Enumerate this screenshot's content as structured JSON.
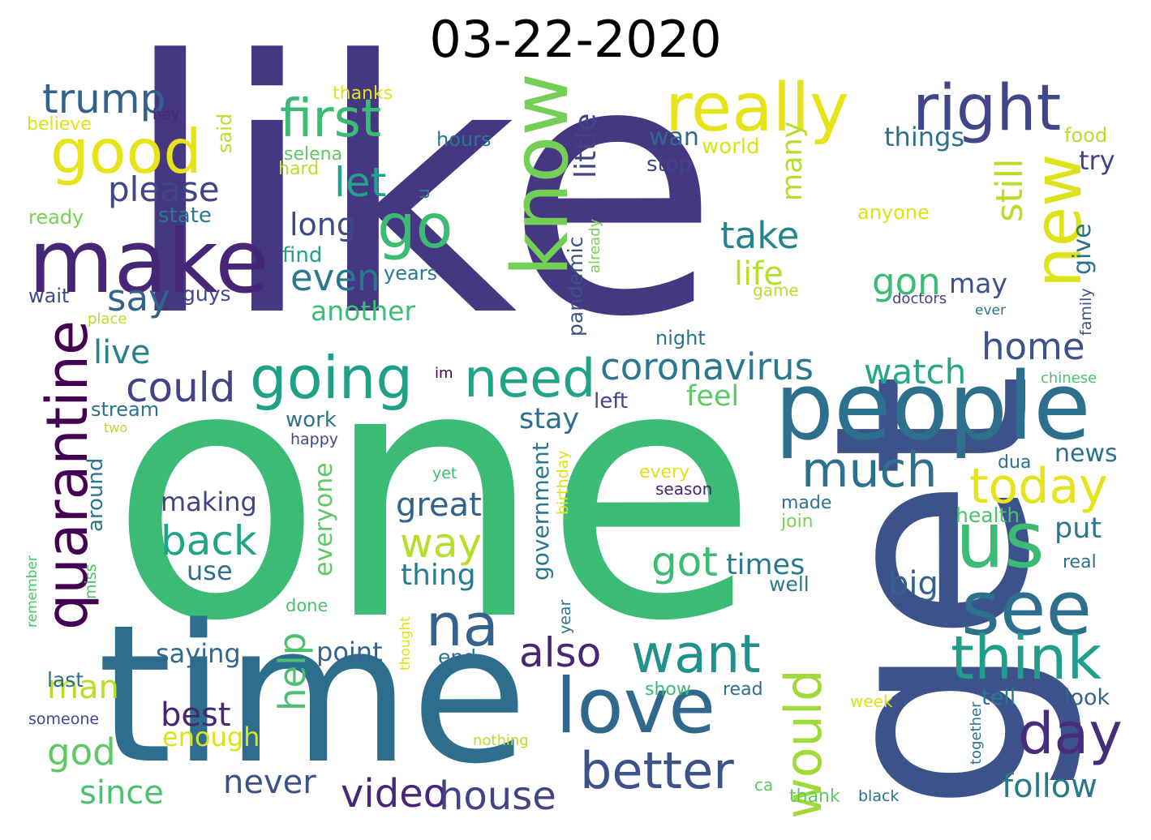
{
  "title": "03-22-2020",
  "colors": {
    "dark_purple": "#453781",
    "purple": "#482677",
    "blue": "#33638d",
    "steel": "#2d708e",
    "teal": "#238a8d",
    "green_teal": "#20a386",
    "green": "#3cbb75",
    "light_green": "#73d055",
    "lime": "#b8de29",
    "yellow": "#e6e419"
  },
  "words": [
    {
      "text": "like",
      "color": "#453781"
    },
    {
      "text": "one",
      "color": "#3cbb75"
    },
    {
      "text": "get",
      "color": "#3b528b"
    },
    {
      "text": "time",
      "color": "#2d6d8e"
    },
    {
      "text": "people",
      "color": "#2d708e"
    },
    {
      "text": "make",
      "color": "#482677"
    },
    {
      "text": "know",
      "color": "#73d055"
    },
    {
      "text": "really",
      "color": "#e6e419"
    },
    {
      "text": "right",
      "color": "#404688"
    },
    {
      "text": "first",
      "color": "#3cbb75"
    },
    {
      "text": "good",
      "color": "#e6e419"
    },
    {
      "text": "new",
      "color": "#dde318"
    },
    {
      "text": "go",
      "color": "#3cbb75"
    },
    {
      "text": "quarantine",
      "color": "#440154"
    },
    {
      "text": "going",
      "color": "#1fa187"
    },
    {
      "text": "need",
      "color": "#20a386"
    },
    {
      "text": "us",
      "color": "#3cbb75"
    },
    {
      "text": "see",
      "color": "#2d708e"
    },
    {
      "text": "love",
      "color": "#31688e"
    },
    {
      "text": "think",
      "color": "#1f9e89"
    },
    {
      "text": "na",
      "color": "#33638d"
    },
    {
      "text": "want",
      "color": "#21918c"
    },
    {
      "text": "would",
      "color": "#a0da39"
    },
    {
      "text": "better",
      "color": "#3b528b"
    },
    {
      "text": "day",
      "color": "#472d7b"
    },
    {
      "text": "today",
      "color": "#e6e419"
    },
    {
      "text": "much",
      "color": "#2c728e"
    },
    {
      "text": "coronavirus",
      "color": "#2a788e"
    },
    {
      "text": "trump",
      "color": "#33638d"
    },
    {
      "text": "please",
      "color": "#404688"
    },
    {
      "text": "let",
      "color": "#20a386"
    },
    {
      "text": "say",
      "color": "#33638d"
    },
    {
      "text": "even",
      "color": "#2a788e"
    },
    {
      "text": "long",
      "color": "#3e4989"
    },
    {
      "text": "little",
      "color": "#414487"
    },
    {
      "text": "take",
      "color": "#25858e"
    },
    {
      "text": "still",
      "color": "#b8de29"
    },
    {
      "text": "life",
      "color": "#b8de29"
    },
    {
      "text": "gon",
      "color": "#3cbb75"
    },
    {
      "text": "home",
      "color": "#3b528b"
    },
    {
      "text": "watch",
      "color": "#22a884"
    },
    {
      "text": "feel",
      "color": "#5ec962"
    },
    {
      "text": "could",
      "color": "#414487"
    },
    {
      "text": "live",
      "color": "#26828e"
    },
    {
      "text": "another",
      "color": "#3cbb75"
    },
    {
      "text": "many",
      "color": "#b8de29"
    },
    {
      "text": "back",
      "color": "#20a386"
    },
    {
      "text": "great",
      "color": "#33638d"
    },
    {
      "text": "way",
      "color": "#b8de29"
    },
    {
      "text": "got",
      "color": "#3cbb75"
    },
    {
      "text": "also",
      "color": "#482677"
    },
    {
      "text": "help",
      "color": "#4ac16d"
    },
    {
      "text": "best",
      "color": "#482677"
    },
    {
      "text": "man",
      "color": "#b8de29"
    },
    {
      "text": "god",
      "color": "#5ec962"
    },
    {
      "text": "since",
      "color": "#4ac16d"
    },
    {
      "text": "never",
      "color": "#3b528b"
    },
    {
      "text": "video",
      "color": "#482677"
    },
    {
      "text": "house",
      "color": "#414487"
    },
    {
      "text": "follow",
      "color": "#2a788e"
    },
    {
      "text": "stay",
      "color": "#2d708e"
    },
    {
      "text": "thing",
      "color": "#287c8e"
    },
    {
      "text": "big",
      "color": "#33638d"
    },
    {
      "text": "times",
      "color": "#2a788e"
    },
    {
      "text": "give",
      "color": "#2c728e"
    },
    {
      "text": "may",
      "color": "#3b528b"
    },
    {
      "text": "put",
      "color": "#2a788e"
    },
    {
      "text": "news",
      "color": "#2d708e"
    },
    {
      "text": "making",
      "color": "#414487"
    },
    {
      "text": "use",
      "color": "#2d708e"
    },
    {
      "text": "saying",
      "color": "#31688e"
    },
    {
      "text": "point",
      "color": "#33638d"
    },
    {
      "text": "enough",
      "color": "#dde318"
    },
    {
      "text": "everyone",
      "color": "#5ec962"
    },
    {
      "text": "government",
      "color": "#2a788e"
    },
    {
      "text": "around",
      "color": "#2a788e"
    },
    {
      "text": "pandemic",
      "color": "#3b528b"
    },
    {
      "text": "already",
      "color": "#7ad151"
    },
    {
      "text": "work",
      "color": "#2c728e"
    },
    {
      "text": "left",
      "color": "#404688"
    },
    {
      "text": "wan",
      "color": "#31688e"
    },
    {
      "text": "stop",
      "color": "#3e4989"
    },
    {
      "text": "world",
      "color": "#dde318"
    },
    {
      "text": "things",
      "color": "#2d708e"
    },
    {
      "text": "try",
      "color": "#414487"
    },
    {
      "text": "food",
      "color": "#b8de29"
    },
    {
      "text": "hours",
      "color": "#2a788e"
    },
    {
      "text": "selena",
      "color": "#5ec962"
    },
    {
      "text": "hard",
      "color": "#b8de29"
    },
    {
      "text": "state",
      "color": "#2a788e"
    },
    {
      "text": "find",
      "color": "#20a386"
    },
    {
      "text": "years",
      "color": "#287c8e"
    },
    {
      "text": "said",
      "color": "#b8de29"
    },
    {
      "text": "thanks",
      "color": "#dde318"
    },
    {
      "text": "hey",
      "color": "#482677"
    },
    {
      "text": "believe",
      "color": "#dde318"
    },
    {
      "text": "ready",
      "color": "#7ad151"
    },
    {
      "text": "u",
      "color": "#2a788e"
    },
    {
      "text": "anyone",
      "color": "#dde318"
    },
    {
      "text": "game",
      "color": "#b8de29"
    },
    {
      "text": "doctors",
      "color": "#414487"
    },
    {
      "text": "ever",
      "color": "#2c728e"
    },
    {
      "text": "family",
      "color": "#3b528b"
    },
    {
      "text": "night",
      "color": "#2c728e"
    },
    {
      "text": "guys",
      "color": "#3e4989"
    },
    {
      "text": "wait",
      "color": "#3e4989"
    },
    {
      "text": "place",
      "color": "#b8de29"
    },
    {
      "text": "chinese",
      "color": "#4ac16d"
    },
    {
      "text": "im",
      "color": "#440154"
    },
    {
      "text": "stream",
      "color": "#2c728e"
    },
    {
      "text": "two",
      "color": "#b8de29"
    },
    {
      "text": "happy",
      "color": "#3e4989"
    },
    {
      "text": "yet",
      "color": "#3cbb75"
    },
    {
      "text": "every",
      "color": "#dde318"
    },
    {
      "text": "season",
      "color": "#482677"
    },
    {
      "text": "dua",
      "color": "#2c728e"
    },
    {
      "text": "birthday",
      "color": "#dde318"
    },
    {
      "text": "made",
      "color": "#2d708e"
    },
    {
      "text": "join",
      "color": "#7ad151"
    },
    {
      "text": "health",
      "color": "#4ac16d"
    },
    {
      "text": "real",
      "color": "#2d708e"
    },
    {
      "text": "miss",
      "color": "#4ac16d"
    },
    {
      "text": "remember",
      "color": "#4ac16d"
    },
    {
      "text": "done",
      "color": "#4ac16d"
    },
    {
      "text": "year",
      "color": "#2a788e"
    },
    {
      "text": "thought",
      "color": "#dde318"
    },
    {
      "text": "well",
      "color": "#2a788e"
    },
    {
      "text": "last",
      "color": "#2d708e"
    },
    {
      "text": "end",
      "color": "#2d708e"
    },
    {
      "text": "show",
      "color": "#3cbb75"
    },
    {
      "text": "read",
      "color": "#2d708e"
    },
    {
      "text": "tell",
      "color": "#2a788e"
    },
    {
      "text": "look",
      "color": "#33638d"
    },
    {
      "text": "week",
      "color": "#dde318"
    },
    {
      "text": "someone",
      "color": "#404688"
    },
    {
      "text": "nothing",
      "color": "#b8de29"
    },
    {
      "text": "together",
      "color": "#2c728e"
    },
    {
      "text": "ca",
      "color": "#5ec962"
    },
    {
      "text": "thank",
      "color": "#5ec962"
    },
    {
      "text": "black",
      "color": "#2d708e"
    }
  ]
}
